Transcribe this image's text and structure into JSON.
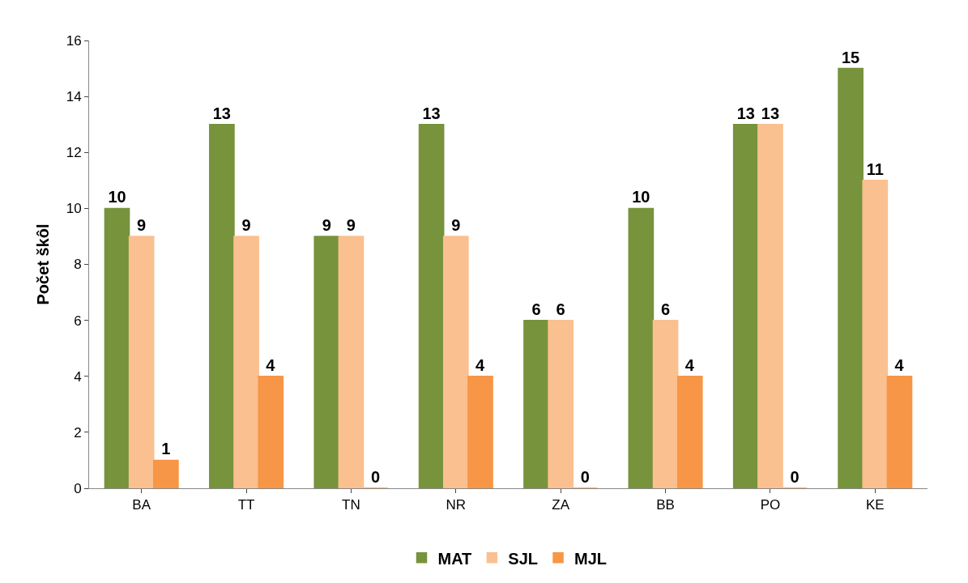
{
  "chart_data": {
    "type": "bar",
    "ylabel": "Počet škôl",
    "categories": [
      "BA",
      "TT",
      "TN",
      "NR",
      "ZA",
      "BB",
      "PO",
      "KE"
    ],
    "series": [
      {
        "name": "MAT",
        "color": "#77933c",
        "values": [
          10,
          13,
          9,
          13,
          6,
          10,
          13,
          15
        ]
      },
      {
        "name": "SJL",
        "color": "#fac090",
        "values": [
          9,
          9,
          9,
          9,
          6,
          6,
          13,
          11
        ]
      },
      {
        "name": "MJL",
        "color": "#f79646",
        "values": [
          1,
          4,
          0,
          4,
          0,
          4,
          0,
          4
        ]
      }
    ],
    "ylim": [
      0,
      16
    ],
    "yticks": [
      0,
      2,
      4,
      6,
      8,
      10,
      12,
      14,
      16
    ],
    "grid": false,
    "legend": "bottom",
    "data_labels": true
  }
}
